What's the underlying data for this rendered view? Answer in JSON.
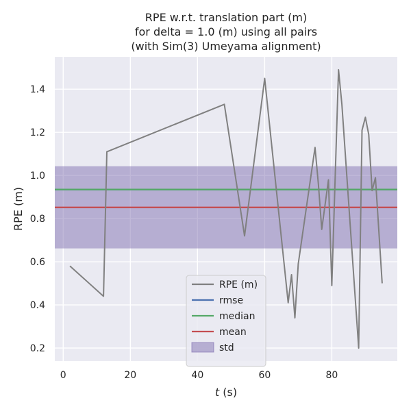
{
  "chart_data": {
    "type": "line",
    "title": [
      "RPE w.r.t. translation part (m)",
      "for delta = 1.0 (m) using all pairs",
      "(with Sim(3) Umeyama alignment)"
    ],
    "xlabel_italic": "t",
    "xlabel_rest": " (s)",
    "ylabel": "RPE (m)",
    "xlim": [
      -2.5,
      99.5
    ],
    "ylim": [
      0.14,
      1.55
    ],
    "xticks": [
      0,
      20,
      40,
      60,
      80
    ],
    "yticks": [
      0.2,
      0.4,
      0.6,
      0.8,
      1.0,
      1.2,
      1.4
    ],
    "ytick_labels": [
      "0.2",
      "0.4",
      "0.6",
      "0.8",
      "1.0",
      "1.2",
      "1.4"
    ],
    "grid": true,
    "background": "#eaeaf2",
    "legend_position": "lower-center",
    "series": [
      {
        "name": "RPE (m)",
        "color": "#808080",
        "x": [
          2,
          12,
          13,
          48,
          54,
          60,
          67,
          68,
          69,
          70,
          75,
          76,
          77,
          79,
          80,
          82,
          83,
          88,
          89,
          90,
          91,
          92,
          93,
          95
        ],
        "y": [
          0.58,
          0.44,
          1.11,
          1.33,
          0.72,
          1.45,
          0.41,
          0.54,
          0.34,
          0.59,
          1.13,
          0.96,
          0.75,
          0.98,
          0.49,
          1.49,
          1.33,
          0.2,
          1.21,
          1.27,
          1.19,
          0.93,
          0.99,
          0.5
        ]
      }
    ],
    "stats": [
      {
        "name": "rmse",
        "value": 0.935,
        "color": "#4c72b0"
      },
      {
        "name": "median",
        "value": 0.935,
        "color": "#55a868"
      },
      {
        "name": "mean",
        "value": 0.852,
        "color": "#c44e52"
      }
    ],
    "std_band": {
      "name": "std",
      "low": 0.662,
      "high": 1.043,
      "color": "#8172b2"
    }
  }
}
